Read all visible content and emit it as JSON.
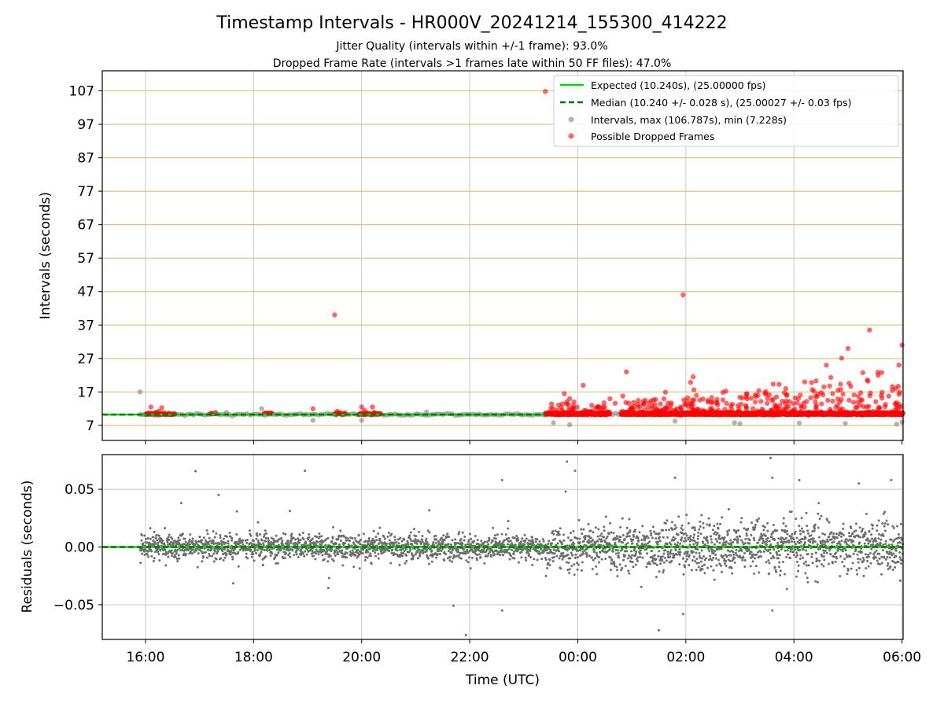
{
  "chart_data": {
    "type": "scatter",
    "title": "Timestamp Intervals - HR000V_20241214_155300_414222",
    "subtitles": [
      "Jitter Quality (intervals within +/-1 frame): 93.0%",
      "Dropped Frame Rate (intervals >1 frames late within 50 FF files): 47.0%"
    ],
    "xlabel": "Time (UTC)",
    "x_ticks": [
      "16:00",
      "18:00",
      "20:00",
      "22:00",
      "00:00",
      "02:00",
      "04:00",
      "06:00"
    ],
    "x_range_hours": [
      15.2,
      30.02
    ],
    "top": {
      "ylabel": "Intervals (seconds)",
      "ylim": [
        2.5,
        113
      ],
      "y_ticks": [
        "7",
        "17",
        "27",
        "37",
        "47",
        "57",
        "67",
        "77",
        "87",
        "97",
        "107"
      ],
      "expected_interval": 10.24,
      "median_interval": 10.24,
      "legend_position": "top-right",
      "legend": [
        "Expected (10.240s), (25.00000 fps)",
        "Median (10.240 +/- 0.028 s), (25.00027 +/- 0.03 fps)",
        "Intervals, max (106.787s), min (7.228s)",
        "Possible Dropped Frames"
      ],
      "intervals_max": 106.787,
      "intervals_min": 7.228,
      "dropped_points": [
        [
          23.4,
          106.8
        ],
        [
          19.5,
          40
        ],
        [
          25.95,
          46
        ],
        [
          29.4,
          35.5
        ],
        [
          30.0,
          31
        ],
        [
          29.0,
          30
        ],
        [
          28.6,
          25
        ],
        [
          28.2,
          20
        ]
      ]
    },
    "bottom": {
      "ylabel": "Residuals (seconds)",
      "ylim": [
        -0.08,
        0.08
      ],
      "y_ticks": [
        "−0.05",
        "0.00",
        "0.05"
      ],
      "baseline": 0.0
    },
    "colors": {
      "expected": "#00e000",
      "median": "#007a00",
      "intervals": "#808080",
      "dropped": "#ff0000",
      "hgrid_top": "#ddc27a",
      "grid": "#c8c8c8"
    }
  }
}
